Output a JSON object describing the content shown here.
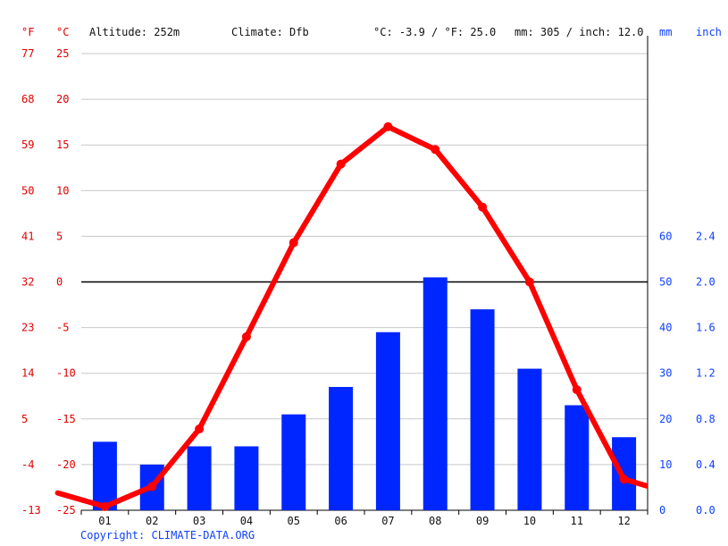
{
  "header": {
    "unit_f": "°F",
    "unit_c": "°C",
    "altitude": "Altitude: 252m",
    "climate": "Climate: Dfb",
    "temp_avg": "°C: -3.9 / °F: 25.0",
    "precip_total": "mm: 305 / inch: 12.0",
    "unit_mm": "mm",
    "unit_inch": "inch"
  },
  "footer": {
    "copyright": "Copyright: CLIMATE-DATA.ORG"
  },
  "colors": {
    "temperature": "#ff0000",
    "precipitation": "#0026ff",
    "label_red": "#e00000",
    "label_blue": "#1040ff",
    "zero_line": "#000000",
    "grid": "#c8c8c8"
  },
  "chart_data": {
    "type": "bar+line",
    "categories": [
      "01",
      "02",
      "03",
      "04",
      "05",
      "06",
      "07",
      "08",
      "09",
      "10",
      "11",
      "12"
    ],
    "ylim_temp_c": [
      -25,
      25
    ],
    "ylim_precip_mm": [
      0,
      100
    ],
    "y_ticks_c": [
      25,
      20,
      15,
      10,
      5,
      0,
      -5,
      -10,
      -15,
      -20,
      -25
    ],
    "y_ticks_f": [
      77,
      68,
      59,
      50,
      41,
      32,
      23,
      14,
      5,
      -4,
      -13
    ],
    "y_ticks_mm": [
      60,
      50,
      40,
      30,
      20,
      10,
      0
    ],
    "y_ticks_inch": [
      "2.4",
      "2.0",
      "1.6",
      "1.2",
      "0.8",
      "0.4",
      "0.0"
    ],
    "grid": true,
    "series": [
      {
        "type": "bar",
        "values": [
          15,
          10,
          14,
          14,
          21,
          27,
          39,
          51,
          44,
          31,
          23,
          16
        ]
      },
      {
        "type": "line",
        "values": [
          -24.6,
          -22.4,
          -16.1,
          -6.0,
          4.3,
          12.9,
          17.0,
          14.5,
          8.2,
          0.0,
          -11.8,
          -21.6
        ]
      }
    ]
  }
}
